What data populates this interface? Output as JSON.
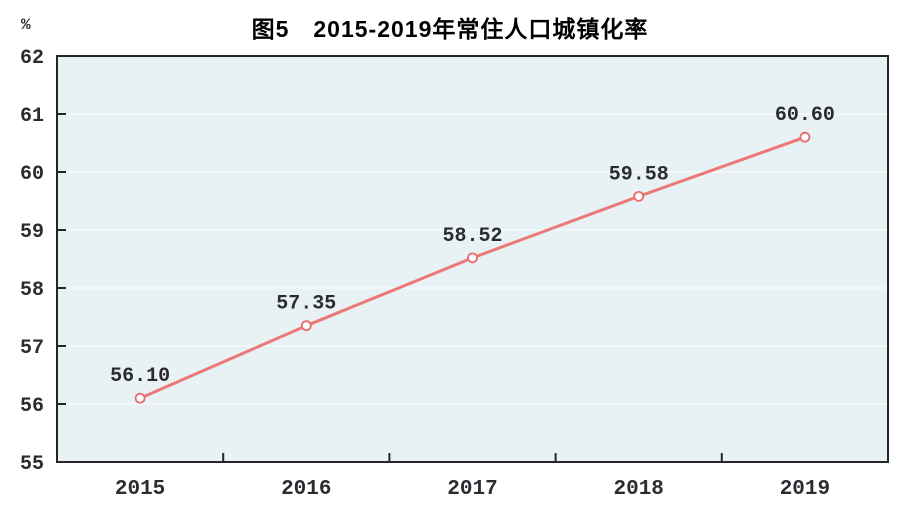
{
  "chart_data": {
    "type": "line",
    "title": "图5　2015-2019年常住人口城镇化率",
    "ylabel_unit": "%",
    "categories": [
      "2015",
      "2016",
      "2017",
      "2018",
      "2019"
    ],
    "values": [
      56.1,
      57.35,
      58.52,
      59.58,
      60.6
    ],
    "data_labels": [
      "56.10",
      "57.35",
      "58.52",
      "59.58",
      "60.60"
    ],
    "ylim": [
      55,
      62
    ],
    "ytick_interval": 1,
    "ytick_labels": [
      "55",
      "56",
      "57",
      "58",
      "59",
      "60",
      "61",
      "62"
    ],
    "grid": true,
    "legend_position": "none",
    "colors": {
      "line": "#ec7878",
      "marker_stroke": "#e96b6b",
      "marker_fill": "#ffffff",
      "plot_background": "#e8f1f3",
      "grid_line": "#f6fbfc",
      "axis_border": "#262626",
      "tick": "#262626",
      "number_text": "#2b2b31",
      "title_text": "#000000"
    }
  }
}
